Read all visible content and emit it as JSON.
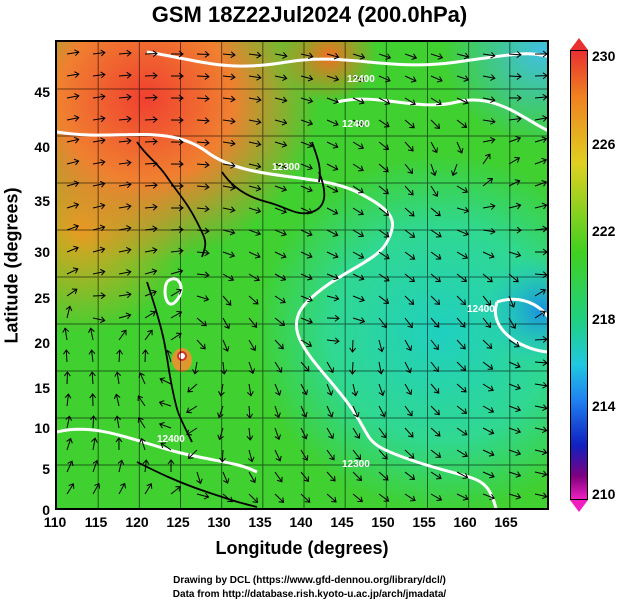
{
  "map": {
    "title": "GSM 18Z22Jul2024 (200.0hPa)",
    "x_axis_label": "Longitude (degrees)",
    "y_axis_label": "Latitude  (degrees)",
    "lon_ticks": [
      "110",
      "115",
      "120",
      "125",
      "130",
      "135",
      "140",
      "145",
      "150",
      "155",
      "160",
      "165"
    ],
    "lat_ticks": [
      "45",
      "40",
      "35",
      "30",
      "25",
      "20",
      "15",
      "10",
      "5",
      "0"
    ],
    "lon_range": [
      110,
      170
    ],
    "lat_range": [
      0,
      50
    ],
    "contour_labels": [
      "12400",
      "12400",
      "12300",
      "12400",
      "12300",
      "12400"
    ],
    "colorbar": {
      "ticks": [
        "230",
        "226",
        "222",
        "218",
        "214",
        "210"
      ],
      "range": [
        210,
        230
      ],
      "colors": [
        "#e83030",
        "#f08020",
        "#e0d020",
        "#40d020",
        "#20d080",
        "#20c8e0",
        "#2080f0",
        "#1020c0",
        "#800080",
        "#f020c0"
      ]
    },
    "credit_line1": "Drawing by DCL (https://www.gfd-dennou.org/library/dcl/)",
    "credit_line2": "Data from http://database.rish.kyoto-u.ac.jp/arch/jmadata/"
  }
}
